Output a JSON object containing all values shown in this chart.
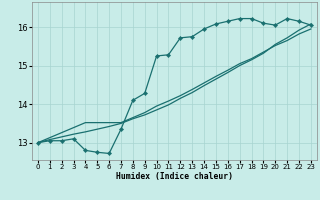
{
  "xlabel": "Humidex (Indice chaleur)",
  "background_color": "#c8ece8",
  "grid_color": "#a8d4d0",
  "line_color": "#1a7070",
  "xlim": [
    -0.5,
    23.5
  ],
  "ylim": [
    12.55,
    16.65
  ],
  "yticks": [
    13,
    14,
    15,
    16
  ],
  "xticks": [
    0,
    1,
    2,
    3,
    4,
    5,
    6,
    7,
    8,
    9,
    10,
    11,
    12,
    13,
    14,
    15,
    16,
    17,
    18,
    19,
    20,
    21,
    22,
    23
  ],
  "line1_x": [
    0,
    1,
    2,
    3,
    4,
    5,
    6,
    7,
    8,
    9,
    10,
    11,
    12,
    13,
    14,
    15,
    16,
    17,
    18,
    19,
    20,
    21,
    22,
    23
  ],
  "line1_y": [
    13.0,
    13.05,
    13.05,
    13.1,
    12.8,
    12.75,
    12.72,
    13.35,
    14.1,
    14.28,
    15.25,
    15.28,
    15.72,
    15.75,
    15.95,
    16.08,
    16.15,
    16.22,
    16.22,
    16.1,
    16.05,
    16.22,
    16.15,
    16.05
  ],
  "line2_x": [
    0,
    1,
    2,
    3,
    4,
    5,
    6,
    7,
    8,
    9,
    10,
    11,
    12,
    13,
    14,
    15,
    16,
    17,
    18,
    19,
    20,
    21,
    22,
    23
  ],
  "line2_y": [
    13.0,
    13.13,
    13.26,
    13.39,
    13.52,
    13.52,
    13.52,
    13.52,
    13.65,
    13.78,
    13.95,
    14.08,
    14.22,
    14.38,
    14.55,
    14.72,
    14.88,
    15.05,
    15.18,
    15.35,
    15.52,
    15.65,
    15.82,
    15.95
  ],
  "line3_x": [
    0,
    1,
    2,
    3,
    4,
    5,
    6,
    7,
    8,
    9,
    10,
    11,
    12,
    13,
    14,
    15,
    16,
    17,
    18,
    19,
    20,
    21,
    22,
    23
  ],
  "line3_y": [
    13.0,
    13.08,
    13.15,
    13.22,
    13.28,
    13.35,
    13.42,
    13.5,
    13.62,
    13.72,
    13.85,
    13.98,
    14.15,
    14.3,
    14.48,
    14.65,
    14.82,
    15.0,
    15.15,
    15.32,
    15.55,
    15.72,
    15.92,
    16.08
  ]
}
